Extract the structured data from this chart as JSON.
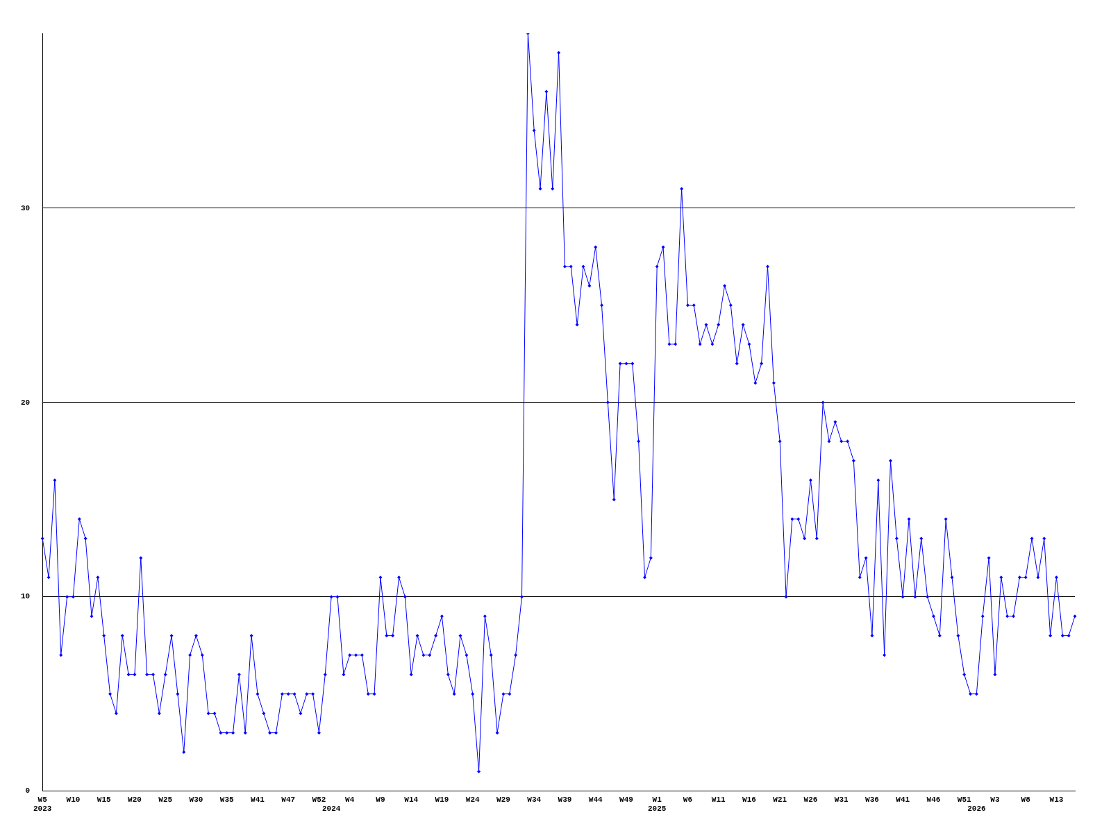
{
  "chart_data": {
    "type": "line",
    "categories": [
      "W5\n2023",
      null,
      null,
      null,
      null,
      "W10",
      null,
      null,
      null,
      null,
      "W15",
      null,
      null,
      null,
      null,
      "W20",
      null,
      null,
      null,
      null,
      "W25",
      null,
      null,
      null,
      null,
      "W30",
      null,
      null,
      null,
      null,
      "W35",
      null,
      null,
      null,
      null,
      "W41",
      null,
      null,
      null,
      null,
      "W47",
      null,
      null,
      null,
      null,
      "W52",
      null,
      "\n2024",
      null,
      null,
      "W4",
      null,
      null,
      null,
      null,
      "W9",
      null,
      null,
      null,
      null,
      "W14",
      null,
      null,
      null,
      null,
      "W19",
      null,
      null,
      null,
      null,
      "W24",
      null,
      null,
      null,
      null,
      "W29",
      null,
      null,
      null,
      null,
      "W34",
      null,
      null,
      null,
      null,
      "W39",
      null,
      null,
      null,
      null,
      "W44",
      null,
      null,
      null,
      null,
      "W49",
      null,
      null,
      null,
      null,
      "W1\n2025",
      null,
      null,
      null,
      null,
      "W6",
      null,
      null,
      null,
      null,
      "W11",
      null,
      null,
      null,
      null,
      "W16",
      null,
      null,
      null,
      null,
      "W21",
      null,
      null,
      null,
      null,
      "W26",
      null,
      null,
      null,
      null,
      "W31",
      null,
      null,
      null,
      null,
      "W36",
      null,
      null,
      null,
      null,
      "W41",
      null,
      null,
      null,
      null,
      "W46",
      null,
      null,
      null,
      null,
      "W51",
      null,
      "\n2026",
      null,
      null,
      "W3",
      null,
      null,
      null,
      null,
      "W8",
      null,
      null,
      null,
      null,
      "W13",
      null,
      null,
      null
    ],
    "series": [
      {
        "color": "#0000ff",
        "values": [
          13,
          11,
          16,
          7,
          10,
          10,
          14,
          13,
          9,
          11,
          8,
          5,
          4,
          8,
          6,
          6,
          12,
          6,
          6,
          4,
          6,
          8,
          5,
          2,
          7,
          8,
          7,
          4,
          4,
          3,
          3,
          3,
          6,
          3,
          8,
          5,
          4,
          3,
          3,
          5,
          5,
          5,
          4,
          5,
          5,
          3,
          6,
          10,
          10,
          6,
          7,
          7,
          7,
          5,
          5,
          11,
          8,
          8,
          11,
          10,
          6,
          8,
          7,
          7,
          8,
          9,
          6,
          5,
          8,
          7,
          5,
          1,
          9,
          7,
          3,
          5,
          5,
          7,
          10,
          39,
          34,
          31,
          36,
          31,
          38,
          27,
          27,
          24,
          27,
          26,
          28,
          25,
          20,
          15,
          22,
          22,
          22,
          18,
          11,
          12,
          27,
          28,
          23,
          23,
          31,
          25,
          25,
          23,
          24,
          23,
          24,
          26,
          25,
          22,
          24,
          23,
          21,
          22,
          27,
          21,
          18,
          10,
          14,
          14,
          13,
          16,
          13,
          20,
          18,
          19,
          18,
          18,
          17,
          11,
          12,
          8,
          16,
          7,
          17,
          13,
          10,
          14,
          10,
          13,
          10,
          9,
          8,
          14,
          11,
          8,
          6,
          5,
          5,
          9,
          12,
          6,
          11,
          9,
          9,
          11,
          11,
          13,
          11,
          13,
          8,
          11,
          8,
          8,
          9
        ]
      }
    ],
    "ylim": [
      0,
      39
    ],
    "yticks": [
      0,
      10,
      20,
      30
    ],
    "grid": "y",
    "legend": false,
    "marker": "diamond",
    "line_style": "solid"
  }
}
